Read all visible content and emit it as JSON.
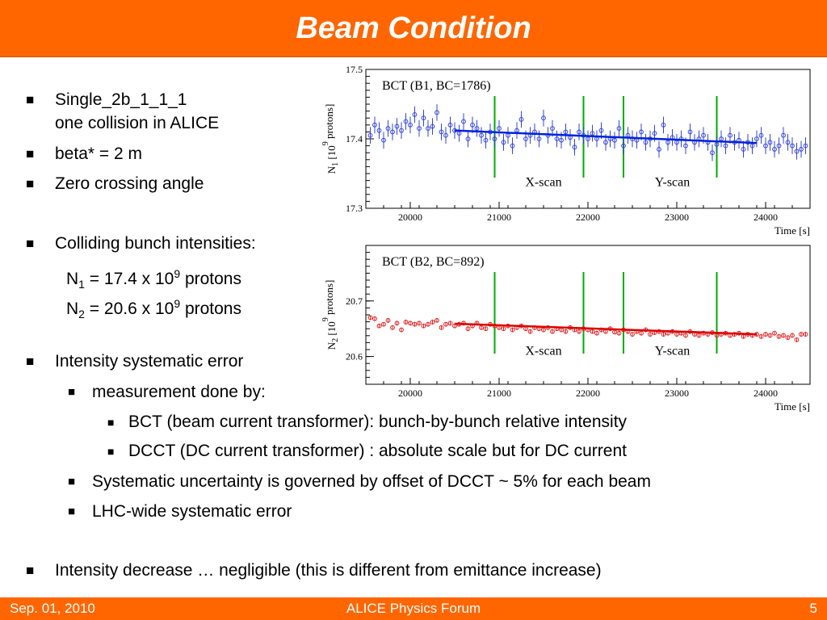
{
  "header": {
    "title": "Beam Condition"
  },
  "footer": {
    "date": "Sep. 01, 2010",
    "event": "ALICE Physics Forum",
    "page": "5"
  },
  "bullet_glyph": "■",
  "content": {
    "b1_line1": "Single_2b_1_1_1",
    "b1_line2": "one collision in ALICE",
    "b2": "beta* = 2 m",
    "b3": "Zero crossing angle",
    "b4": "Colliding bunch intensities:",
    "n1": {
      "sym": "N",
      "sub": "1",
      "eq": " = 17.4 x 10",
      "sup": "9",
      "unit": " protons"
    },
    "n2": {
      "sym": "N",
      "sub": "2",
      "eq": " = 20.6 x 10",
      "sup": "9",
      "unit": " protons"
    },
    "b5": "Intensity systematic error",
    "b5_1": "measurement done by:",
    "b5_1_1": "BCT (beam current transformer): bunch-by-bunch relative intensity",
    "b5_1_2": "DCCT (DC current transformer) : absolute scale but for DC current",
    "b5_2": "Systematic uncertainty is governed by offset of DCCT ~ 5% for each beam",
    "b5_3": "LHC-wide systematic error",
    "b6": "Intensity decrease … negligible (this is different from emittance increase)"
  },
  "chart_data": [
    {
      "type": "scatter",
      "title": "BCT (B1, BC=1786)",
      "ylabel_sym": "N",
      "ylabel_sub": "1",
      "ylabel_rest": " [10",
      "ylabel_sup": "9",
      "ylabel_end": " protons]",
      "xlabel": "Time [s]",
      "xlim": [
        19500,
        24500
      ],
      "ylim": [
        17.3,
        17.5
      ],
      "xticks": [
        20000,
        21000,
        22000,
        23000,
        24000
      ],
      "yticks": [
        17.3,
        17.4,
        17.5
      ],
      "ytick_labels": [
        "17.3",
        "17.4",
        "17.5"
      ],
      "color": "#3344dd",
      "fit_color": "#0022dd",
      "fit": {
        "x": [
          20500,
          23900
        ],
        "y": [
          17.412,
          17.394
        ]
      },
      "scan_lines": [
        20950,
        21950,
        22400,
        23450
      ],
      "scan_color": "#00aa00",
      "annotations": [
        {
          "text": "X-scan",
          "x": 21500,
          "y": 17.332
        },
        {
          "text": "Y-scan",
          "x": 22950,
          "y": 17.332
        }
      ],
      "series": [
        {
          "x": [
            19550,
            19600,
            19650,
            19700,
            19750,
            19800,
            19850,
            19900,
            19950,
            20000,
            20050,
            20100,
            20150,
            20200,
            20250,
            20300,
            20350,
            20400,
            20450,
            20500,
            20550,
            20600,
            20650,
            20700,
            20750,
            20800,
            20850,
            20900,
            20950,
            21000,
            21050,
            21100,
            21150,
            21200,
            21250,
            21300,
            21350,
            21400,
            21450,
            21500,
            21550,
            21600,
            21650,
            21700,
            21750,
            21800,
            21850,
            21900,
            21950,
            22000,
            22050,
            22100,
            22150,
            22200,
            22250,
            22300,
            22350,
            22400,
            22450,
            22500,
            22550,
            22600,
            22650,
            22700,
            22750,
            22800,
            22850,
            22900,
            22950,
            23000,
            23050,
            23100,
            23150,
            23200,
            23250,
            23300,
            23350,
            23400,
            23450,
            23500,
            23550,
            23600,
            23650,
            23700,
            23750,
            23800,
            23850,
            23900,
            23950,
            24000,
            24050,
            24100,
            24150,
            24200,
            24250,
            24300,
            24350,
            24400,
            24450
          ],
          "y": [
            17.405,
            17.42,
            17.412,
            17.398,
            17.415,
            17.41,
            17.418,
            17.412,
            17.425,
            17.42,
            17.435,
            17.415,
            17.43,
            17.415,
            17.418,
            17.438,
            17.41,
            17.405,
            17.42,
            17.412,
            17.408,
            17.425,
            17.4,
            17.42,
            17.415,
            17.405,
            17.398,
            17.41,
            17.4,
            17.415,
            17.395,
            17.405,
            17.39,
            17.412,
            17.428,
            17.4,
            17.405,
            17.41,
            17.4,
            17.43,
            17.405,
            17.415,
            17.4,
            17.398,
            17.41,
            17.402,
            17.388,
            17.41,
            17.405,
            17.4,
            17.408,
            17.4,
            17.412,
            17.395,
            17.4,
            17.398,
            17.415,
            17.39,
            17.405,
            17.4,
            17.398,
            17.41,
            17.395,
            17.4,
            17.408,
            17.385,
            17.42,
            17.395,
            17.402,
            17.395,
            17.4,
            17.39,
            17.41,
            17.395,
            17.4,
            17.405,
            17.395,
            17.38,
            17.392,
            17.4,
            17.39,
            17.405,
            17.395,
            17.398,
            17.385,
            17.395,
            17.39,
            17.4,
            17.405,
            17.39,
            17.395,
            17.385,
            17.39,
            17.405,
            17.395,
            17.39,
            17.382,
            17.385,
            17.39
          ],
          "err": 0.012
        }
      ]
    },
    {
      "type": "scatter",
      "title": "BCT (B2, BC=892)",
      "ylabel_sym": "N",
      "ylabel_sub": "2",
      "ylabel_rest": " [10",
      "ylabel_sup": "9",
      "ylabel_end": " protons]",
      "xlabel": "Time [s]",
      "xlim": [
        19500,
        24500
      ],
      "ylim": [
        20.55,
        20.8
      ],
      "xticks": [
        20000,
        21000,
        22000,
        23000,
        24000
      ],
      "yticks": [
        20.6,
        20.7
      ],
      "ytick_labels": [
        "20.6",
        "20.7"
      ],
      "color": "#dd2222",
      "fit_color": "#dd0000",
      "fit": {
        "x": [
          20500,
          23900
        ],
        "y": [
          20.659,
          20.64
        ]
      },
      "scan_lines": [
        20950,
        21950,
        22400,
        23450
      ],
      "scan_color": "#00aa00",
      "annotations": [
        {
          "text": "X-scan",
          "x": 21500,
          "y": 20.603
        },
        {
          "text": "Y-scan",
          "x": 22950,
          "y": 20.603
        }
      ],
      "series": [
        {
          "x": [
            19550,
            19600,
            19650,
            19700,
            19750,
            19800,
            19850,
            19900,
            19950,
            20000,
            20050,
            20100,
            20150,
            20200,
            20250,
            20300,
            20350,
            20400,
            20450,
            20500,
            20550,
            20600,
            20650,
            20700,
            20750,
            20800,
            20850,
            20900,
            20950,
            21000,
            21050,
            21100,
            21150,
            21200,
            21250,
            21300,
            21350,
            21400,
            21450,
            21500,
            21550,
            21600,
            21650,
            21700,
            21750,
            21800,
            21850,
            21900,
            21950,
            22000,
            22050,
            22100,
            22150,
            22200,
            22250,
            22300,
            22350,
            22400,
            22450,
            22500,
            22550,
            22600,
            22650,
            22700,
            22750,
            22800,
            22850,
            22900,
            22950,
            23000,
            23050,
            23100,
            23150,
            23200,
            23250,
            23300,
            23350,
            23400,
            23450,
            23500,
            23550,
            23600,
            23650,
            23700,
            23750,
            23800,
            23850,
            23900,
            23950,
            24000,
            24050,
            24100,
            24150,
            24200,
            24250,
            24300,
            24350,
            24400,
            24450
          ],
          "y": [
            20.67,
            20.668,
            20.655,
            20.658,
            20.665,
            20.652,
            20.66,
            20.648,
            20.662,
            20.66,
            20.658,
            20.66,
            20.655,
            20.658,
            20.662,
            20.665,
            20.652,
            20.658,
            20.66,
            20.655,
            20.658,
            20.66,
            20.65,
            20.655,
            20.66,
            20.652,
            20.65,
            20.658,
            20.655,
            20.652,
            20.65,
            20.655,
            20.648,
            20.652,
            20.655,
            20.65,
            20.645,
            20.652,
            20.65,
            20.648,
            20.652,
            20.645,
            20.65,
            20.648,
            20.645,
            20.652,
            20.648,
            20.645,
            20.65,
            20.648,
            20.645,
            20.642,
            20.648,
            20.645,
            20.65,
            20.644,
            20.642,
            20.648,
            20.645,
            20.64,
            20.645,
            20.642,
            20.648,
            20.64,
            20.643,
            20.645,
            20.64,
            20.642,
            20.645,
            20.64,
            20.642,
            20.638,
            20.645,
            20.64,
            20.638,
            20.642,
            20.64,
            20.643,
            20.638,
            20.64,
            20.642,
            20.638,
            20.64,
            20.642,
            20.636,
            20.64,
            20.638,
            20.64,
            20.636,
            20.64,
            20.638,
            20.642,
            20.636,
            20.638,
            20.634,
            20.638,
            20.63,
            20.64,
            20.64
          ],
          "err": 0.004
        }
      ]
    }
  ]
}
